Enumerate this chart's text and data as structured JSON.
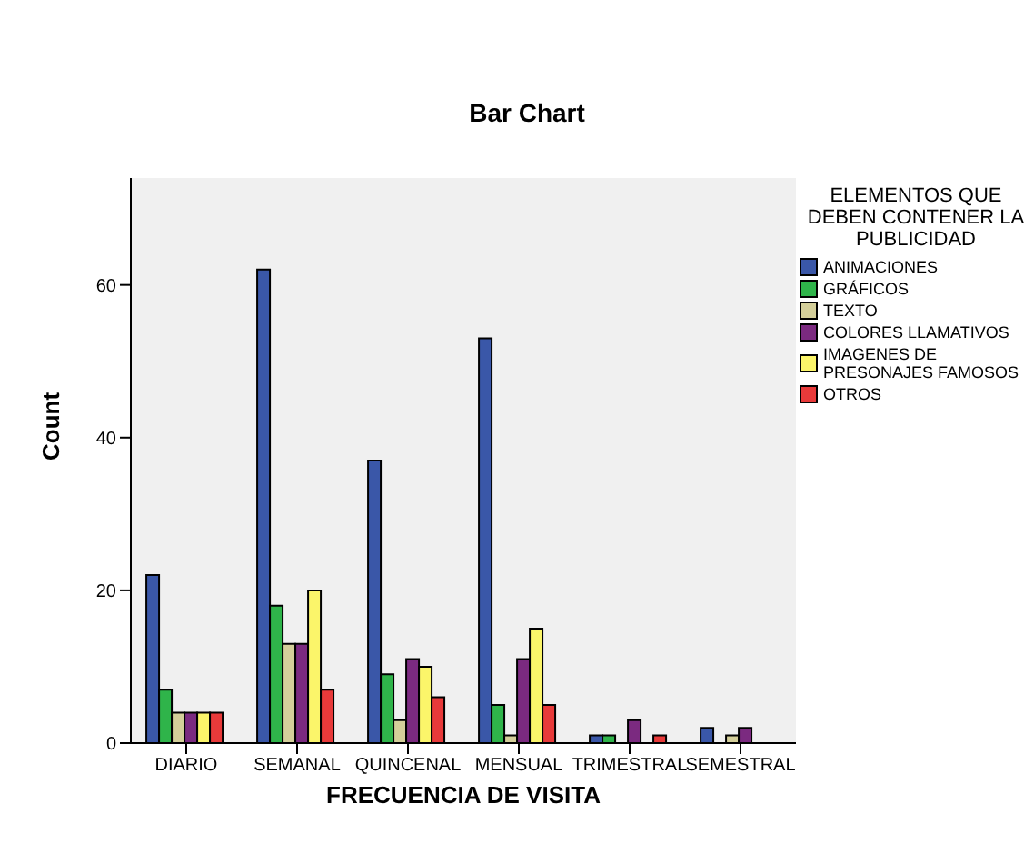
{
  "chart_data": {
    "type": "bar",
    "title": "Bar Chart",
    "xlabel": "FRECUENCIA DE VISITA",
    "ylabel": "Count",
    "legend_title": "ELEMENTOS QUE DEBEN CONTENER LA PUBLICIDAD",
    "categories": [
      "DIARIO",
      "SEMANAL",
      "QUINCENAL",
      "MENSUAL",
      "TRIMESTRAL",
      "SEMESTRAL"
    ],
    "series": [
      {
        "name": "ANIMACIONES",
        "color": "#3a57a8",
        "values": [
          22,
          62,
          37,
          53,
          1,
          2
        ]
      },
      {
        "name": "GRÁFICOS",
        "color": "#2fb44a",
        "values": [
          7,
          18,
          9,
          5,
          1,
          0
        ]
      },
      {
        "name": "TEXTO",
        "color": "#d4cf9a",
        "values": [
          4,
          13,
          3,
          1,
          0,
          1
        ]
      },
      {
        "name": "COLORES LLAMATIVOS",
        "color": "#7b2a80",
        "values": [
          4,
          13,
          11,
          11,
          3,
          2
        ]
      },
      {
        "name": "IMAGENES DE PRESONAJES FAMOSOS",
        "color": "#fbf56a",
        "values": [
          4,
          20,
          10,
          15,
          0,
          0
        ]
      },
      {
        "name": "OTROS",
        "color": "#e83a3a",
        "values": [
          4,
          7,
          6,
          5,
          1,
          0
        ]
      }
    ],
    "ylim": [
      0,
      74
    ],
    "yticks": [
      0,
      20,
      40,
      60
    ],
    "grid": false,
    "legend": "top right"
  }
}
